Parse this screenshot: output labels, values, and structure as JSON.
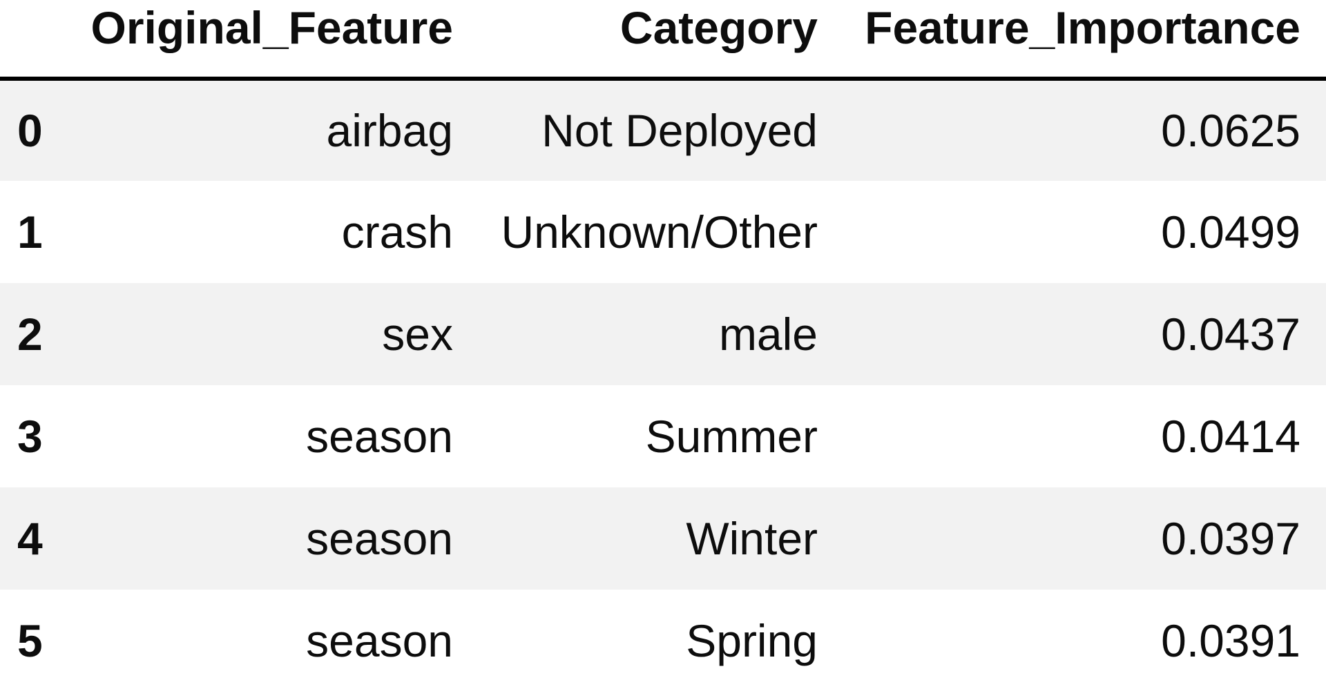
{
  "chart_data": {
    "type": "table",
    "title": "",
    "columns": [
      "",
      "Original_Feature",
      "Category",
      "Feature_Importance"
    ],
    "rows": [
      [
        "0",
        "airbag",
        "Not Deployed",
        "0.0625"
      ],
      [
        "1",
        "crash",
        "Unknown/Other",
        "0.0499"
      ],
      [
        "2",
        "sex",
        "male",
        "0.0437"
      ],
      [
        "3",
        "season",
        "Summer",
        "0.0414"
      ],
      [
        "4",
        "season",
        "Winter",
        "0.0397"
      ],
      [
        "5",
        "season",
        "Spring",
        "0.0391"
      ]
    ],
    "layout": {
      "style": "pandas-dataframe",
      "header_bold": true,
      "header_align": "right",
      "cell_align": "right",
      "index_align": "left",
      "striped_rows": "odd rows gray starting with first data row",
      "header_rule": "thick solid black bottom border"
    },
    "colors": {
      "background": "#ffffff",
      "row_stripe": "#f2f2f2",
      "text": "#0d0d0d",
      "header_border": "#000000"
    }
  }
}
